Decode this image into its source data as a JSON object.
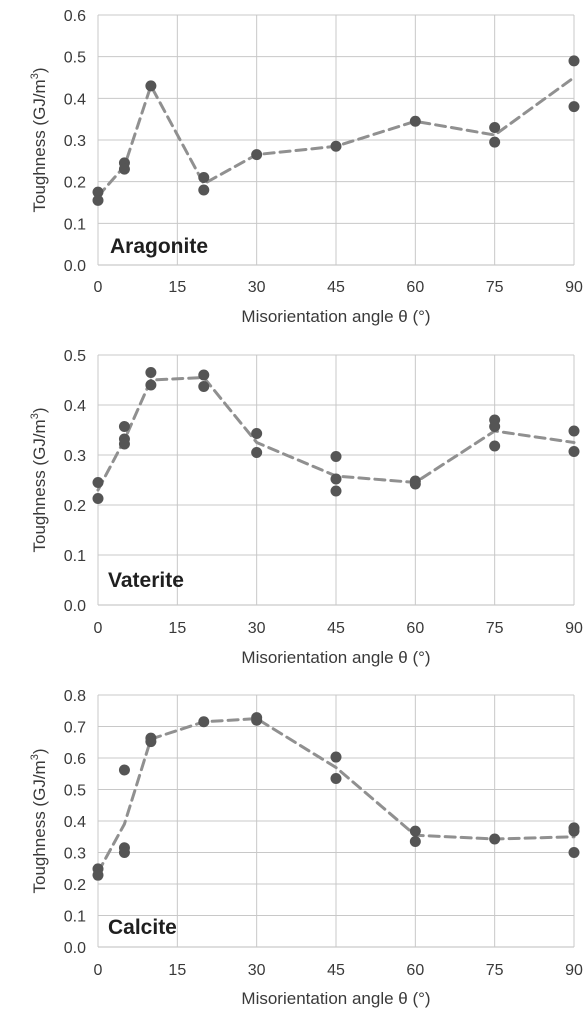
{
  "chart_data": [
    {
      "type": "scatter",
      "panel_label": "Aragonite",
      "xlabel": "Misorientation angle θ (°)",
      "ylabel_main": "Toughness (GJ/m",
      "ylabel_sup": "3",
      "ylabel_close": ")",
      "xlim": [
        0,
        90
      ],
      "ylim": [
        0,
        0.6
      ],
      "xticks": [
        "0",
        "15",
        "30",
        "45",
        "60",
        "75",
        "90"
      ],
      "yticks": [
        "0.0",
        "0.1",
        "0.2",
        "0.3",
        "0.4",
        "0.5",
        "0.6"
      ],
      "grid": true,
      "points": [
        [
          0,
          0.175
        ],
        [
          0,
          0.155
        ],
        [
          5,
          0.245
        ],
        [
          5,
          0.23
        ],
        [
          10,
          0.43
        ],
        [
          20,
          0.21
        ],
        [
          20,
          0.18
        ],
        [
          30,
          0.265
        ],
        [
          45,
          0.285
        ],
        [
          60,
          0.345
        ],
        [
          75,
          0.33
        ],
        [
          75,
          0.295
        ],
        [
          90,
          0.49
        ],
        [
          90,
          0.38
        ]
      ],
      "trend": [
        [
          0,
          0.165
        ],
        [
          5,
          0.237
        ],
        [
          10,
          0.43
        ],
        [
          20,
          0.195
        ],
        [
          30,
          0.265
        ],
        [
          45,
          0.285
        ],
        [
          60,
          0.345
        ],
        [
          75,
          0.312
        ],
        [
          90,
          0.45
        ]
      ]
    },
    {
      "type": "scatter",
      "panel_label": "Vaterite",
      "xlabel": "Misorientation angle θ (°)",
      "ylabel_main": "Toughness (GJ/m",
      "ylabel_sup": "3",
      "ylabel_close": ")",
      "xlim": [
        0,
        90
      ],
      "ylim": [
        0,
        0.5
      ],
      "xticks": [
        "0",
        "15",
        "30",
        "45",
        "60",
        "75",
        "90"
      ],
      "yticks": [
        "0.0",
        "0.1",
        "0.2",
        "0.3",
        "0.4",
        "0.5"
      ],
      "grid": true,
      "points": [
        [
          0,
          0.245
        ],
        [
          0,
          0.213
        ],
        [
          5,
          0.357
        ],
        [
          5,
          0.332
        ],
        [
          5,
          0.322
        ],
        [
          10,
          0.465
        ],
        [
          10,
          0.44
        ],
        [
          20,
          0.46
        ],
        [
          20,
          0.437
        ],
        [
          30,
          0.343
        ],
        [
          30,
          0.305
        ],
        [
          45,
          0.297
        ],
        [
          45,
          0.252
        ],
        [
          45,
          0.228
        ],
        [
          60,
          0.248
        ],
        [
          60,
          0.242
        ],
        [
          75,
          0.37
        ],
        [
          75,
          0.357
        ],
        [
          75,
          0.318
        ],
        [
          90,
          0.348
        ],
        [
          90,
          0.307
        ]
      ],
      "trend": [
        [
          0,
          0.23
        ],
        [
          5,
          0.33
        ],
        [
          10,
          0.45
        ],
        [
          20,
          0.455
        ],
        [
          30,
          0.325
        ],
        [
          45,
          0.258
        ],
        [
          60,
          0.245
        ],
        [
          75,
          0.348
        ],
        [
          90,
          0.325
        ]
      ]
    },
    {
      "type": "scatter",
      "panel_label": "Calcite",
      "xlabel": "Misorientation angle θ (°)",
      "ylabel_main": "Toughness (GJ/m",
      "ylabel_sup": "3",
      "ylabel_close": ")",
      "xlim": [
        0,
        90
      ],
      "ylim": [
        0,
        0.8
      ],
      "xticks": [
        "0",
        "15",
        "30",
        "45",
        "60",
        "75",
        "90"
      ],
      "yticks": [
        "0.0",
        "0.1",
        "0.2",
        "0.3",
        "0.4",
        "0.5",
        "0.6",
        "0.7",
        "0.8"
      ],
      "grid": true,
      "points": [
        [
          0,
          0.248
        ],
        [
          0,
          0.228
        ],
        [
          5,
          0.562
        ],
        [
          5,
          0.315
        ],
        [
          5,
          0.3
        ],
        [
          10,
          0.663
        ],
        [
          10,
          0.652
        ],
        [
          20,
          0.715
        ],
        [
          30,
          0.728
        ],
        [
          30,
          0.72
        ],
        [
          45,
          0.603
        ],
        [
          45,
          0.535
        ],
        [
          60,
          0.368
        ],
        [
          60,
          0.335
        ],
        [
          75,
          0.343
        ],
        [
          90,
          0.378
        ],
        [
          90,
          0.368
        ],
        [
          90,
          0.3
        ]
      ],
      "trend": [
        [
          0,
          0.237
        ],
        [
          5,
          0.39
        ],
        [
          10,
          0.66
        ],
        [
          20,
          0.715
        ],
        [
          30,
          0.725
        ],
        [
          45,
          0.57
        ],
        [
          60,
          0.355
        ],
        [
          75,
          0.343
        ],
        [
          90,
          0.35
        ]
      ]
    }
  ],
  "colors": {
    "point": "#555555",
    "trend": "#909090",
    "grid": "#c8c8c8",
    "axis": "#bdbdbd",
    "text": "#3a3a3a",
    "label": "#1f1f1f"
  }
}
